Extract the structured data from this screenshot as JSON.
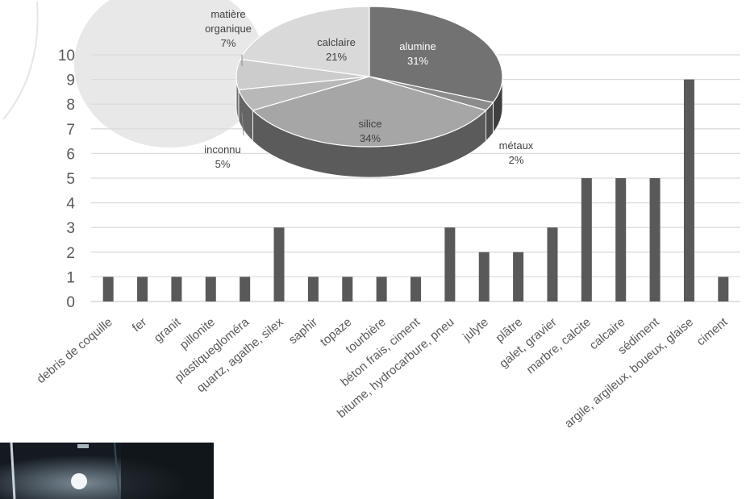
{
  "chart_data": [
    {
      "type": "bar",
      "categories": [
        "debris de coquille",
        "fer",
        "granit",
        "pillonite",
        "plastiquegloméra",
        "quartz, agathe, silex",
        "saphir",
        "topaze",
        "tourbière",
        "béton frais, ciment",
        "bitume, hydrocarbure, pneu",
        "julyte",
        "plâtre",
        "galet, gravier",
        "marbre, calcite",
        "calcaire",
        "sédiment",
        "argile, argileux, boueux, glaise",
        "ciment"
      ],
      "values": [
        1,
        1,
        1,
        1,
        1,
        3,
        1,
        1,
        1,
        1,
        3,
        2,
        2,
        3,
        5,
        5,
        5,
        9,
        1
      ],
      "ylim": [
        0,
        10
      ],
      "yticks": [
        0,
        1,
        2,
        3,
        4,
        5,
        6,
        7,
        8,
        9,
        10
      ],
      "grid": true,
      "bar_color": "#595959"
    },
    {
      "type": "pie",
      "style": "3d",
      "slices": [
        {
          "label": "alumine",
          "value": 31,
          "value_text": "31%",
          "color": "#727272"
        },
        {
          "label": "métaux",
          "value": 2,
          "value_text": "2%",
          "color": "#8c8c8c"
        },
        {
          "label": "silice",
          "value": 34,
          "value_text": "34%",
          "color": "#a6a6a6"
        },
        {
          "label": "inconnu",
          "value": 5,
          "value_text": "5%",
          "color": "#b8b8b8"
        },
        {
          "label": "matière organique",
          "label_lines": [
            "matière",
            "organique"
          ],
          "value": 7,
          "value_text": "7%",
          "color": "#cccccc"
        },
        {
          "label": "calclaire",
          "value": 21,
          "value_text": "21%",
          "color": "#d9d9d9"
        }
      ]
    }
  ]
}
